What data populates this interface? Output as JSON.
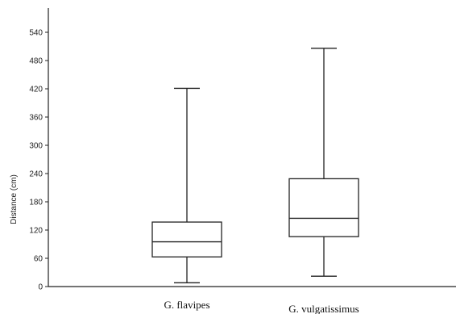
{
  "chart_data": {
    "type": "box",
    "ylabel": "Distance (cm)",
    "xlabel": "",
    "ylim": [
      0,
      570
    ],
    "yticks": [
      0,
      60,
      120,
      180,
      240,
      300,
      360,
      420,
      480,
      540
    ],
    "categories": [
      "G. flavipes",
      "G. vulgatissimus"
    ],
    "boxes": [
      {
        "category": "G. flavipes",
        "min": 8,
        "q1": 63,
        "median": 95,
        "q3": 137,
        "max": 421
      },
      {
        "category": "G. vulgatissimus",
        "min": 22,
        "q1": 106,
        "median": 145,
        "q3": 229,
        "max": 506
      }
    ],
    "grid": false,
    "legend": "none"
  }
}
